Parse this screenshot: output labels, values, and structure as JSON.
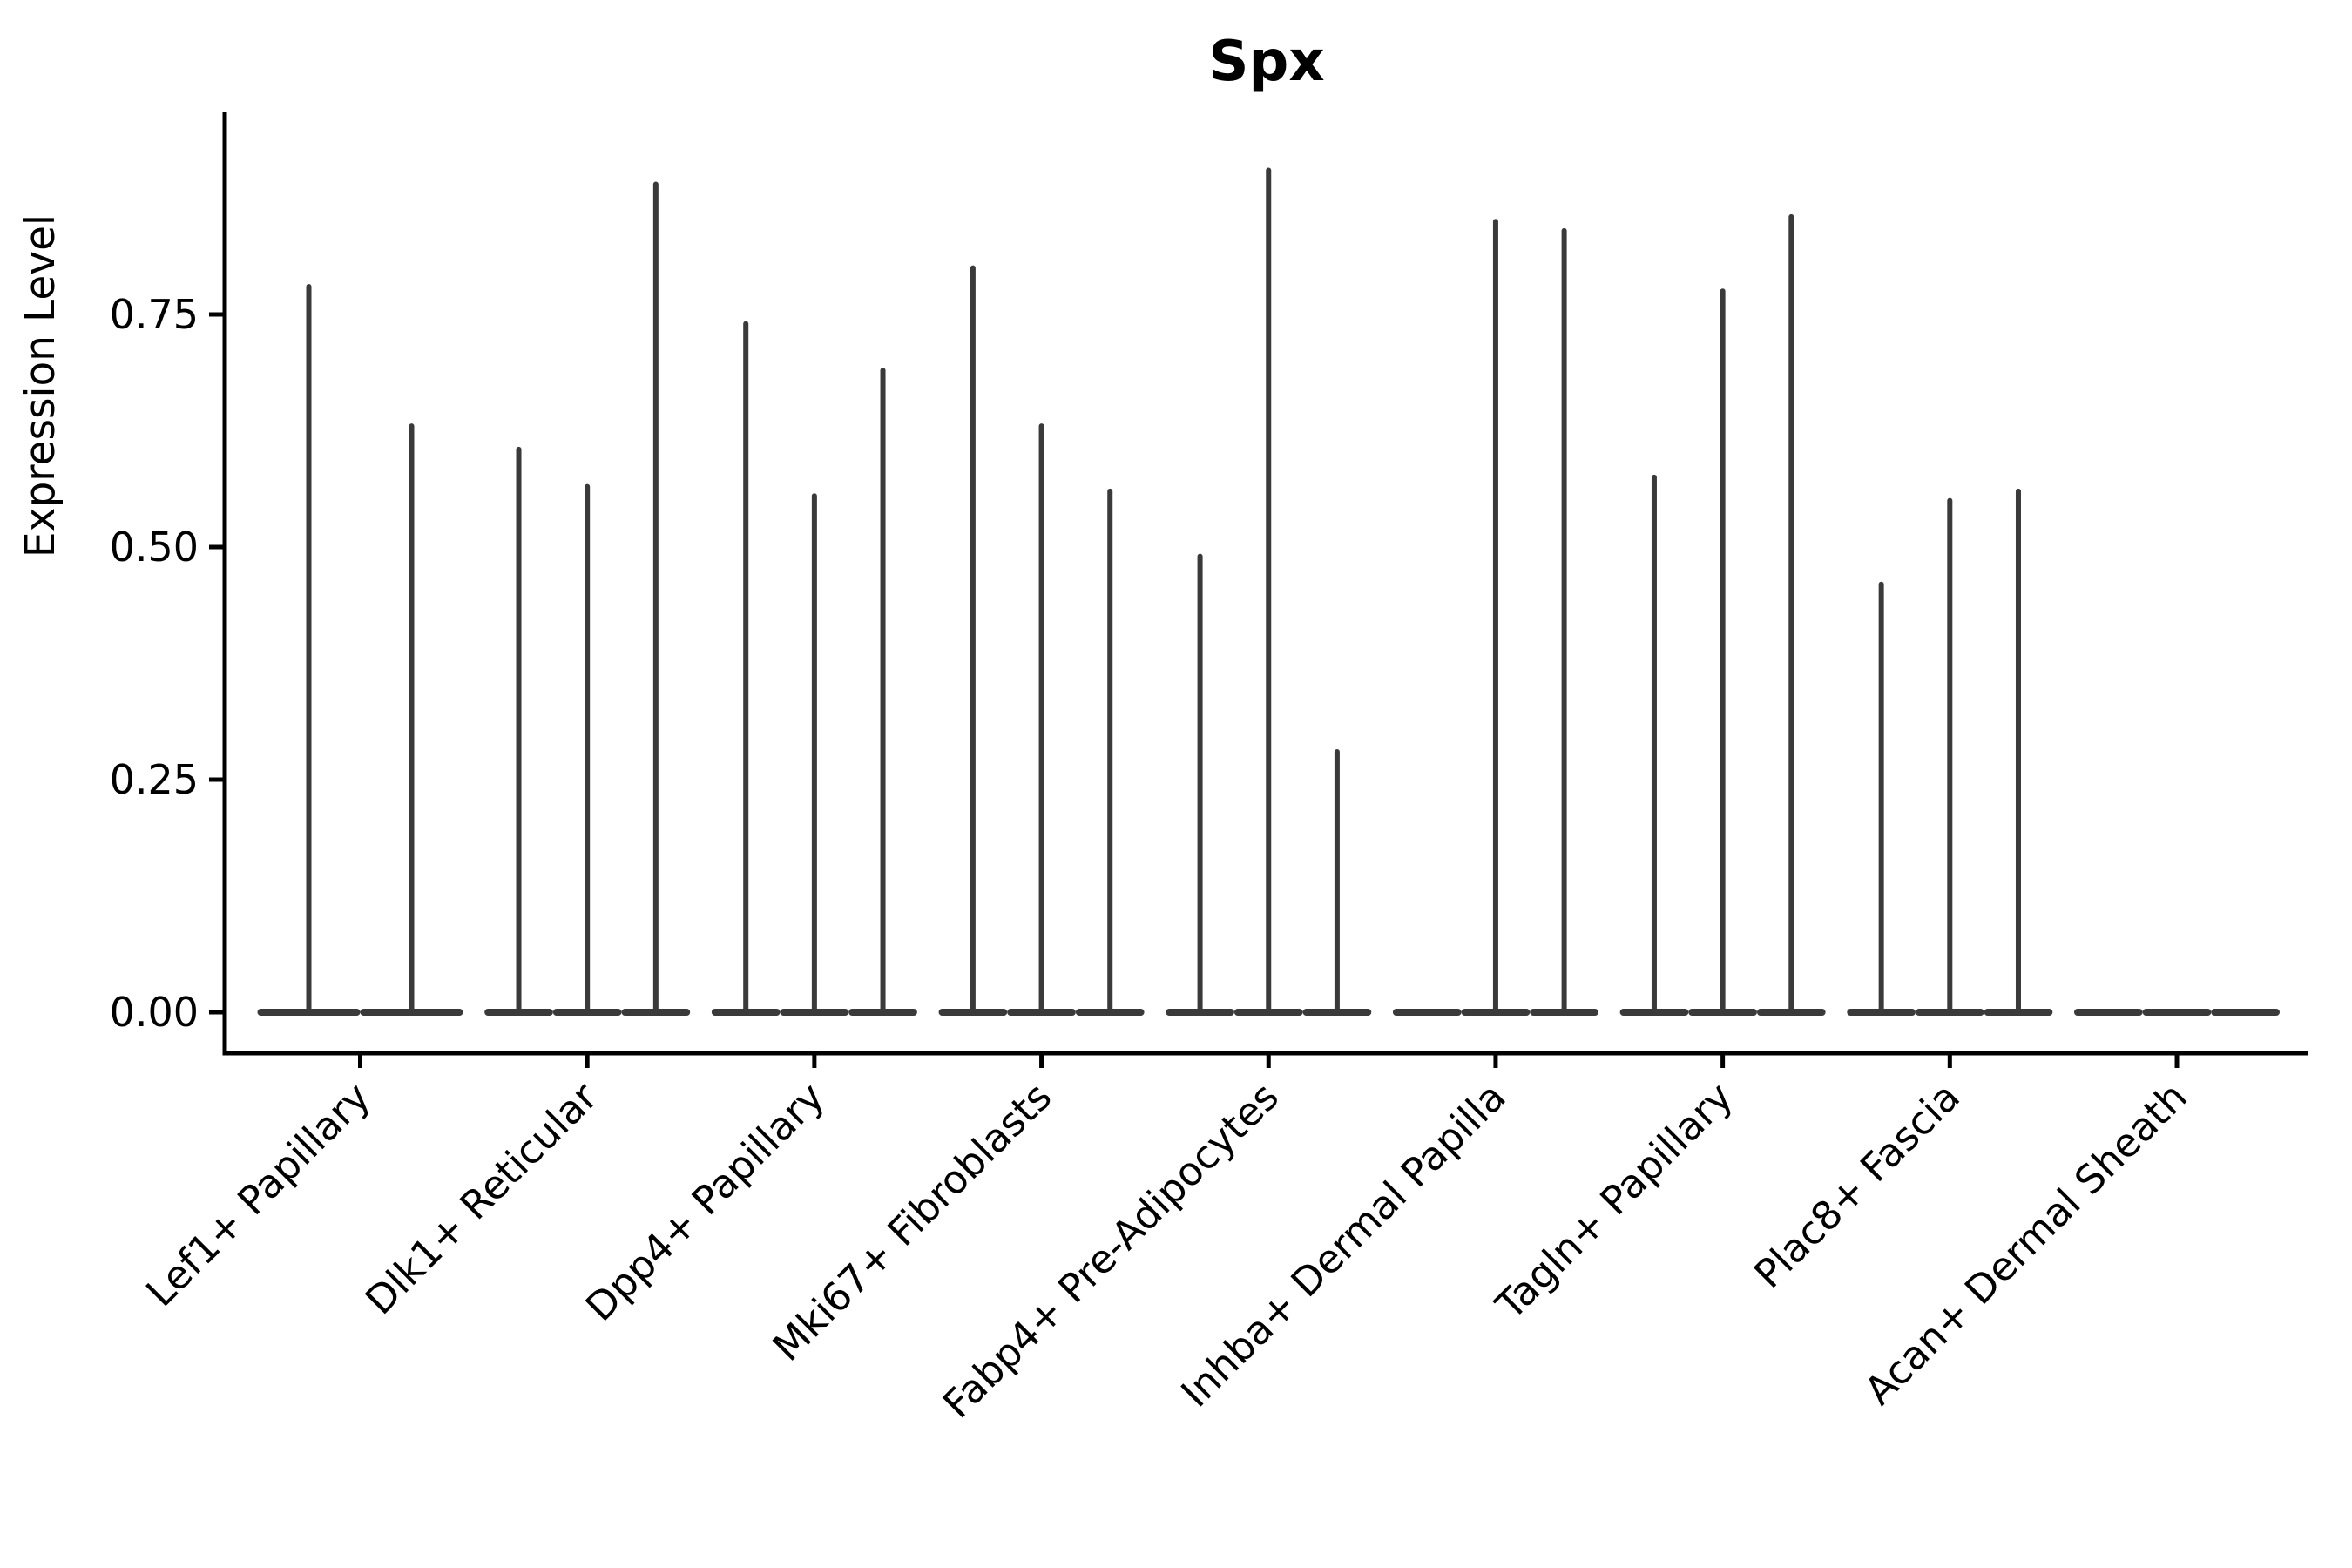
{
  "figure": {
    "background": "#ffffff",
    "axis_color": "#000000",
    "violin_color": "#3a3a3a"
  },
  "chart_data": {
    "type": "violin",
    "title": "Spx",
    "xlabel": "",
    "ylabel": "Expression Level",
    "ylim": [
      0,
      0.967
    ],
    "yticks": [
      0,
      0.25,
      0.5,
      0.75
    ],
    "ytick_labels": [
      "0.00",
      "0.25",
      "0.50",
      "0.75"
    ],
    "grid": false,
    "legend": false,
    "x_tick_rotation": 45,
    "categories": [
      "Lef1+ Papillary",
      "Dlk1+ Reticular",
      "Dpp4+ Papillary",
      "Mki67+ Fibroblasts",
      "Fabp4+ Pre-Adipocytes",
      "Inhba+ Dermal Papilla",
      "Tagln+ Papillary",
      "Plac8+ Fascia",
      "Acan+ Dermal Sheath"
    ],
    "groups": [
      {
        "label": "Lef1+ Papillary",
        "violins": [
          0.78,
          0.63
        ]
      },
      {
        "label": "Dlk1+ Reticular",
        "violins": [
          0.605,
          0.565,
          0.89
        ]
      },
      {
        "label": "Dpp4+ Papillary",
        "violins": [
          0.74,
          0.555,
          0.69
        ]
      },
      {
        "label": "Mki67+ Fibroblasts",
        "violins": [
          0.8,
          0.63,
          0.56
        ]
      },
      {
        "label": "Fabp4+ Pre-Adipocytes",
        "violins": [
          0.49,
          0.905,
          0.28
        ]
      },
      {
        "label": "Inhba+ Dermal Papilla",
        "violins": [
          0,
          0.85,
          0.84
        ]
      },
      {
        "label": "Tagln+ Papillary",
        "violins": [
          0.575,
          0.775,
          0.855
        ]
      },
      {
        "label": "Plac8+ Fascia",
        "violins": [
          0.46,
          0.55,
          0.56
        ]
      },
      {
        "label": "Acan+ Dermal Sheath",
        "violins": [
          0,
          0,
          0
        ]
      }
    ],
    "note": "Each category shows thin collapsed violins (sparse expression); value listed is the top of each violin spike, 0 = flat violin at baseline only."
  }
}
